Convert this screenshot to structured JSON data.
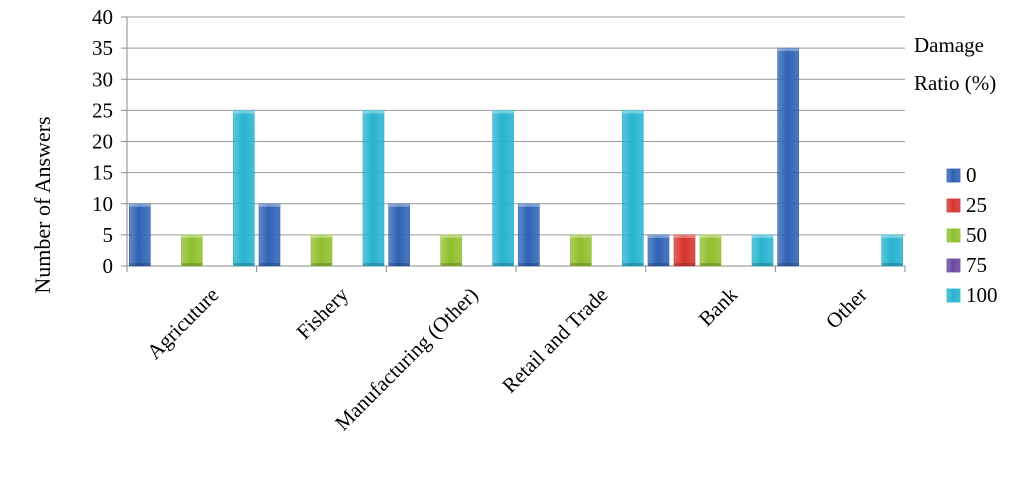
{
  "chart_data": {
    "type": "bar",
    "title": "",
    "xlabel": "",
    "ylabel": "Number of Answers",
    "ylim": [
      0,
      40
    ],
    "yticks": [
      0,
      5,
      10,
      15,
      20,
      25,
      30,
      35,
      40
    ],
    "grid": true,
    "legend_position": "right",
    "legend_title_line1": "Damage",
    "legend_title_line2": "Ratio (%)",
    "categories": [
      "Agricuture",
      "Fishery",
      "Manufacturing (Other)",
      "Retail and Trade",
      "Bank",
      "Other"
    ],
    "series": [
      {
        "name": "0",
        "color": "#2E62B5",
        "values": [
          10,
          10,
          10,
          10,
          5,
          35
        ]
      },
      {
        "name": "25",
        "color": "#D6332D",
        "values": [
          0,
          0,
          0,
          0,
          5,
          0
        ]
      },
      {
        "name": "50",
        "color": "#8FBF2C",
        "values": [
          5,
          5,
          5,
          5,
          5,
          0
        ]
      },
      {
        "name": "75",
        "color": "#6A47A0",
        "values": [
          0,
          0,
          0,
          0,
          0,
          0
        ]
      },
      {
        "name": "100",
        "color": "#27B3CF",
        "values": [
          25,
          25,
          25,
          25,
          5,
          5
        ]
      }
    ]
  }
}
